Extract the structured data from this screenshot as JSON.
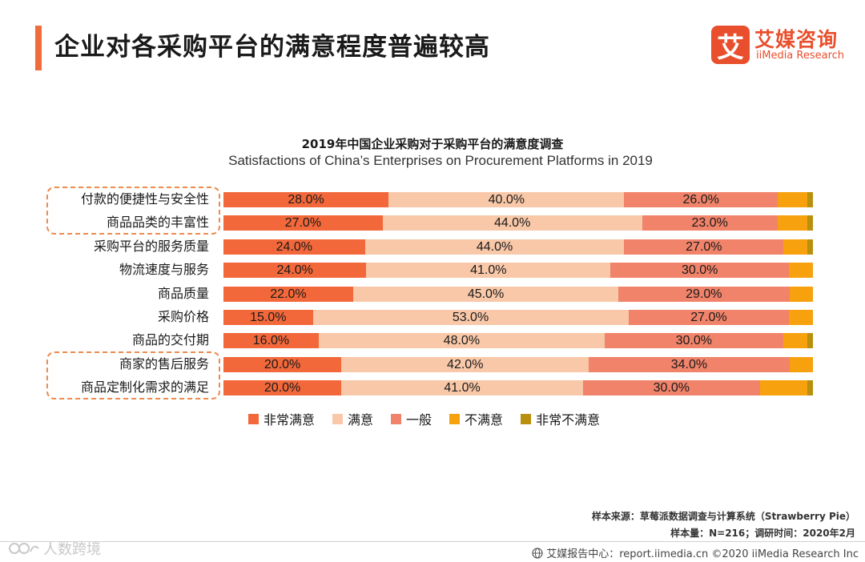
{
  "page": {
    "title": "企业对各采购平台的满意程度普遍较高"
  },
  "brand": {
    "badge": "艾",
    "name_cn": "艾媒咨询",
    "name_en": "iiMedia Research",
    "color": "#e94f2c"
  },
  "chart_data": {
    "type": "bar",
    "orientation": "horizontal",
    "stacked": true,
    "normalized": true,
    "title": "2019年中国企业采购对于采购平台的满意度调查",
    "subtitle": "Satisfactions of China’s Enterprises on Procurement Platforms in 2019",
    "categories": [
      "付款的便捷性与安全性",
      "商品品类的丰富性",
      "采购平台的服务质量",
      "物流速度与服务",
      "商品质量",
      "采购价格",
      "商品的交付期",
      "商家的售后服务",
      "商品定制化需求的满足"
    ],
    "series": [
      {
        "name": "非常满意",
        "color": "#f2683a",
        "values": [
          28,
          27,
          24,
          24,
          22,
          15,
          16,
          20,
          20
        ],
        "labels": [
          "28.0%",
          "27.0%",
          "24.0%",
          "24.0%",
          "22.0%",
          "15.0%",
          "16.0%",
          "20.0%",
          "20.0%"
        ]
      },
      {
        "name": "满意",
        "color": "#f8c8a8",
        "values": [
          40,
          44,
          44,
          41,
          45,
          53,
          48,
          42,
          41
        ],
        "labels": [
          "40.0%",
          "44.0%",
          "44.0%",
          "41.0%",
          "45.0%",
          "53.0%",
          "48.0%",
          "42.0%",
          "41.0%"
        ]
      },
      {
        "name": "一般",
        "color": "#f0836a",
        "values": [
          26,
          23,
          27,
          30,
          29,
          27,
          30,
          34,
          30
        ],
        "labels": [
          "26.0%",
          "23.0%",
          "27.0%",
          "30.0%",
          "29.0%",
          "27.0%",
          "30.0%",
          "34.0%",
          "30.0%"
        ]
      },
      {
        "name": "不满意",
        "color": "#f6a10d",
        "values": [
          5,
          5,
          4,
          4,
          4,
          4,
          4,
          4,
          8
        ],
        "labels": [
          "",
          "",
          "",
          "",
          "",
          "",
          "",
          "",
          ""
        ]
      },
      {
        "name": "非常不满意",
        "color": "#b8900e",
        "values": [
          1,
          1,
          1,
          0,
          0,
          0,
          1,
          0,
          1
        ],
        "labels": [
          "",
          "",
          "",
          "",
          "",
          "",
          "",
          "",
          ""
        ]
      }
    ],
    "highlighted_groups": [
      [
        0,
        1
      ],
      [
        7,
        8
      ]
    ],
    "legend_position": "bottom"
  },
  "source": {
    "line1": "样本来源：草莓派数据调查与计算系统（Strawberry Pie）",
    "line2": "样本量：N=216；调研时间：2020年2月"
  },
  "footer": {
    "text": "艾媒报告中心：report.iimedia.cn ©2020 iiMedia Research Inc",
    "watermark": "人数跨境"
  }
}
